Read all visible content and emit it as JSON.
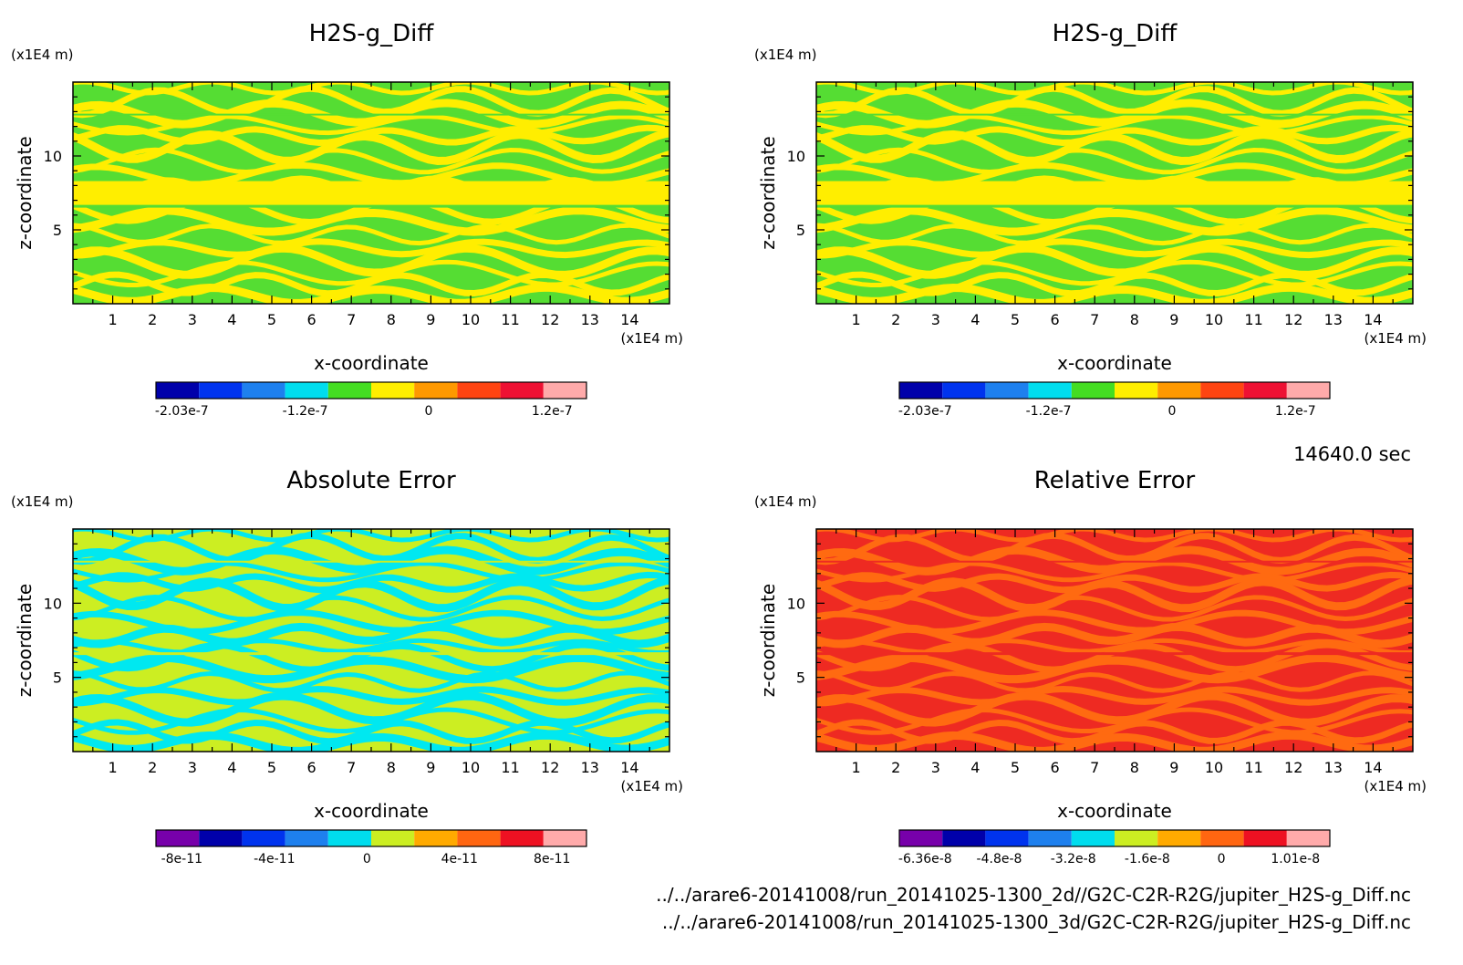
{
  "timestamp": "14640.0 sec",
  "footer": {
    "line1": "../../arare6-20141008/run_20141025-1300_2d//G2C-C2R-R2G/jupiter_H2S-g_Diff.nc",
    "line2": "../../arare6-20141008/run_20141025-1300_3d/G2C-C2R-R2G/jupiter_H2S-g_Diff.nc"
  },
  "chart_data": [
    {
      "type": "heatmap",
      "title": "H2S-g_Diff",
      "xlabel": "x-coordinate",
      "ylabel": "z-coordinate",
      "x_unit": "(x1E4 m)",
      "y_unit": "(x1E4 m)",
      "xlim": [
        0,
        15
      ],
      "ylim": [
        0,
        15
      ],
      "xticks": [
        "1",
        "2",
        "3",
        "4",
        "5",
        "6",
        "7",
        "8",
        "9",
        "10",
        "11",
        "12",
        "13",
        "14"
      ],
      "yticks": [
        "5",
        "10"
      ],
      "background_color": "#55dd33",
      "pattern_color": "#ffee00",
      "colorbar": {
        "colors": [
          "#0000aa",
          "#0033ee",
          "#1e80ee",
          "#00ddee",
          "#44dd22",
          "#ffee00",
          "#ff9900",
          "#ff4411",
          "#ee1133",
          "#ffaaaa"
        ],
        "tick_labels": [
          "-2.03e-7",
          "-1.2e-7",
          "0",
          "1.2e-7"
        ]
      }
    },
    {
      "type": "heatmap",
      "title": "H2S-g_Diff",
      "xlabel": "x-coordinate",
      "ylabel": "z-coordinate",
      "x_unit": "(x1E4 m)",
      "y_unit": "(x1E4 m)",
      "xlim": [
        0,
        15
      ],
      "ylim": [
        0,
        15
      ],
      "xticks": [
        "1",
        "2",
        "3",
        "4",
        "5",
        "6",
        "7",
        "8",
        "9",
        "10",
        "11",
        "12",
        "13",
        "14"
      ],
      "yticks": [
        "5",
        "10"
      ],
      "background_color": "#55dd33",
      "pattern_color": "#ffee00",
      "colorbar": {
        "colors": [
          "#0000aa",
          "#0033ee",
          "#1e80ee",
          "#00ddee",
          "#44dd22",
          "#ffee00",
          "#ff9900",
          "#ff4411",
          "#ee1133",
          "#ffaaaa"
        ],
        "tick_labels": [
          "-2.03e-7",
          "-1.2e-7",
          "0",
          "1.2e-7"
        ]
      }
    },
    {
      "type": "heatmap",
      "title": "Absolute Error",
      "xlabel": "x-coordinate",
      "ylabel": "z-coordinate",
      "x_unit": "(x1E4 m)",
      "y_unit": "(x1E4 m)",
      "xlim": [
        0,
        15
      ],
      "ylim": [
        0,
        15
      ],
      "xticks": [
        "1",
        "2",
        "3",
        "4",
        "5",
        "6",
        "7",
        "8",
        "9",
        "10",
        "11",
        "12",
        "13",
        "14"
      ],
      "yticks": [
        "5",
        "10"
      ],
      "background_color": "#ccee22",
      "pattern_color": "#00e8f0",
      "colorbar": {
        "colors": [
          "#7700aa",
          "#0000aa",
          "#0033ee",
          "#1e80ee",
          "#00ddee",
          "#ccee22",
          "#ffaa00",
          "#ff6611",
          "#ee1122",
          "#ffaaaa"
        ],
        "tick_labels": [
          "-8e-11",
          "-4e-11",
          "0",
          "4e-11",
          "8e-11"
        ]
      }
    },
    {
      "type": "heatmap",
      "title": "Relative Error",
      "xlabel": "x-coordinate",
      "ylabel": "z-coordinate",
      "x_unit": "(x1E4 m)",
      "y_unit": "(x1E4 m)",
      "xlim": [
        0,
        15
      ],
      "ylim": [
        0,
        15
      ],
      "xticks": [
        "1",
        "2",
        "3",
        "4",
        "5",
        "6",
        "7",
        "8",
        "9",
        "10",
        "11",
        "12",
        "13",
        "14"
      ],
      "yticks": [
        "5",
        "10"
      ],
      "background_color": "#ee2a22",
      "pattern_color": "#ff6a11",
      "colorbar": {
        "colors": [
          "#7700aa",
          "#0000aa",
          "#0033ee",
          "#1e80ee",
          "#00ddee",
          "#ccee22",
          "#ffaa00",
          "#ff6611",
          "#ee1122",
          "#ffaaaa"
        ],
        "tick_labels": [
          "-6.36e-8",
          "-4.8e-8",
          "-3.2e-8",
          "-1.6e-8",
          "0",
          "1.01e-8"
        ]
      }
    }
  ]
}
